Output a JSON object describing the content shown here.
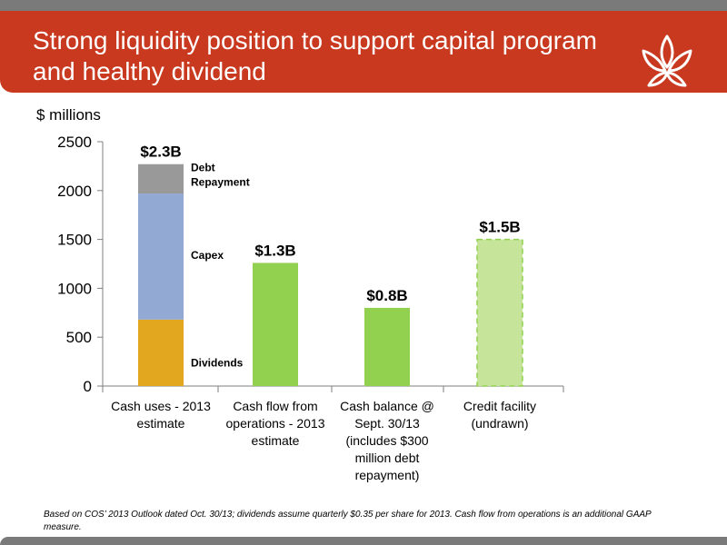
{
  "header": {
    "title_line1": "Strong liquidity position to support capital program",
    "title_line2": "and healthy dividend"
  },
  "colors": {
    "header_band": "#c8391f",
    "header_strip": "#7a7a7a",
    "dividends": "#e3a61f",
    "capex": "#92a9d3",
    "debt_repayment": "#999999",
    "green": "#92d050",
    "credit_facility_fill": "#c6e59b"
  },
  "logo": {
    "icon": "lotus-flower-icon"
  },
  "footnote": "Based on COS’ 2013 Outlook dated Oct. 30/13; dividends assume quarterly $0.35 per share for 2013.  Cash flow from operations is an additional GAAP measure.",
  "chart_data": {
    "type": "bar",
    "ylabel": "$ millions",
    "ylim": [
      0,
      2500
    ],
    "yticks": [
      0,
      500,
      1000,
      1500,
      2000,
      2500
    ],
    "grid": false,
    "legend": "none",
    "categories": [
      [
        "Cash uses - 2013",
        "estimate"
      ],
      [
        "Cash flow from",
        "operations -  2013",
        "estimate"
      ],
      [
        "Cash balance @",
        "Sept. 30/13",
        "(includes $300",
        "million debt",
        "repayment)"
      ],
      [
        "Credit facility",
        "(undrawn)"
      ]
    ],
    "stacked_bar": {
      "category_index": 0,
      "total_label": "$2.3B",
      "segments": [
        {
          "name": "Dividends",
          "value": 680,
          "color": "#e3a61f"
        },
        {
          "name": "Capex",
          "value": 1290,
          "color": "#92a9d3"
        },
        {
          "name": "Debt Repayment",
          "label_lines": [
            "Debt",
            "Repayment"
          ],
          "value": 300,
          "color": "#999999"
        }
      ]
    },
    "bars": [
      {
        "category_index": 1,
        "value": 1260,
        "label": "$1.3B",
        "color": "#92d050",
        "style": "solid"
      },
      {
        "category_index": 2,
        "value": 800,
        "label": "$0.8B",
        "color": "#92d050",
        "style": "solid"
      },
      {
        "category_index": 3,
        "value": 1500,
        "label": "$1.5B",
        "color": "#c6e59b",
        "style": "dashed"
      }
    ]
  }
}
